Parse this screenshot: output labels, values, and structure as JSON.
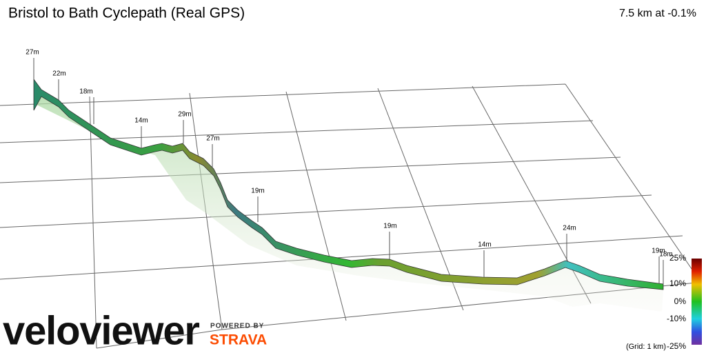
{
  "title": "Bristol to Bath Cyclepath (Real GPS)",
  "summary": "7.5 km at -0.1%",
  "elevation_labels": [
    "27m",
    "22m",
    "18m",
    "14m",
    "29m",
    "27m",
    "19m",
    "19m",
    "14m",
    "24m",
    "19m",
    "18m"
  ],
  "gradient_legend": {
    "ticks": [
      "25%",
      "10%",
      "0%",
      "-10%",
      "-25%"
    ],
    "grid_note": "(Grid: 1 km)"
  },
  "branding": {
    "logo": "veloviewer",
    "powered_by": "POWERED BY",
    "partner": "STRAVA"
  }
}
